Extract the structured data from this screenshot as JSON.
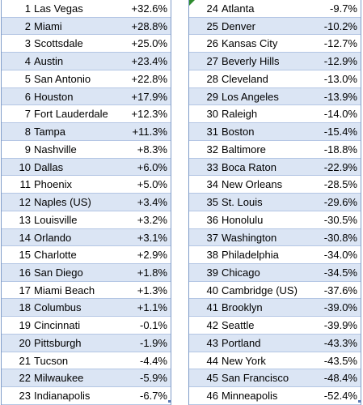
{
  "left": [
    {
      "rank": "1",
      "city": "Las Vegas",
      "change": "+32.6%"
    },
    {
      "rank": "2",
      "city": "Miami",
      "change": "+28.8%"
    },
    {
      "rank": "3",
      "city": "Scottsdale",
      "change": "+25.0%"
    },
    {
      "rank": "4",
      "city": "Austin",
      "change": "+23.4%"
    },
    {
      "rank": "5",
      "city": "San Antonio",
      "change": "+22.8%"
    },
    {
      "rank": "6",
      "city": "Houston",
      "change": "+17.9%"
    },
    {
      "rank": "7",
      "city": "Fort Lauderdale",
      "change": "+12.3%"
    },
    {
      "rank": "8",
      "city": "Tampa",
      "change": "+11.3%"
    },
    {
      "rank": "9",
      "city": "Nashville",
      "change": "+8.3%"
    },
    {
      "rank": "10",
      "city": "Dallas",
      "change": "+6.0%"
    },
    {
      "rank": "11",
      "city": "Phoenix",
      "change": "+5.0%"
    },
    {
      "rank": "12",
      "city": "Naples (US)",
      "change": "+3.4%"
    },
    {
      "rank": "13",
      "city": "Louisville",
      "change": "+3.2%"
    },
    {
      "rank": "14",
      "city": "Orlando",
      "change": "+3.1%"
    },
    {
      "rank": "15",
      "city": "Charlotte",
      "change": "+2.9%"
    },
    {
      "rank": "16",
      "city": "San Diego",
      "change": "+1.8%"
    },
    {
      "rank": "17",
      "city": "Miami Beach",
      "change": "+1.3%"
    },
    {
      "rank": "18",
      "city": "Columbus",
      "change": "+1.1%"
    },
    {
      "rank": "19",
      "city": "Cincinnati",
      "change": "-0.1%"
    },
    {
      "rank": "20",
      "city": "Pittsburgh",
      "change": "-1.9%"
    },
    {
      "rank": "21",
      "city": "Tucson",
      "change": "-4.4%"
    },
    {
      "rank": "22",
      "city": "Milwaukee",
      "change": "-5.9%"
    },
    {
      "rank": "23",
      "city": "Indianapolis",
      "change": "-6.7%"
    }
  ],
  "right": [
    {
      "rank": "24",
      "city": "Atlanta",
      "change": "-9.7%"
    },
    {
      "rank": "25",
      "city": "Denver",
      "change": "-10.2%"
    },
    {
      "rank": "26",
      "city": "Kansas City",
      "change": "-12.7%"
    },
    {
      "rank": "27",
      "city": "Beverly Hills",
      "change": "-12.9%"
    },
    {
      "rank": "28",
      "city": "Cleveland",
      "change": "-13.0%"
    },
    {
      "rank": "29",
      "city": "Los Angeles",
      "change": "-13.9%"
    },
    {
      "rank": "30",
      "city": "Raleigh",
      "change": "-14.0%"
    },
    {
      "rank": "31",
      "city": "Boston",
      "change": "-15.4%"
    },
    {
      "rank": "32",
      "city": "Baltimore",
      "change": "-18.8%"
    },
    {
      "rank": "33",
      "city": "Boca Raton",
      "change": "-22.9%"
    },
    {
      "rank": "34",
      "city": "New Orleans",
      "change": "-28.5%"
    },
    {
      "rank": "35",
      "city": "St. Louis",
      "change": "-29.6%"
    },
    {
      "rank": "36",
      "city": "Honolulu",
      "change": "-30.5%"
    },
    {
      "rank": "37",
      "city": "Washington",
      "change": "-30.8%"
    },
    {
      "rank": "38",
      "city": "Philadelphia",
      "change": "-34.0%"
    },
    {
      "rank": "39",
      "city": "Chicago",
      "change": "-34.5%"
    },
    {
      "rank": "40",
      "city": "Cambridge (US)",
      "change": "-37.6%"
    },
    {
      "rank": "41",
      "city": "Brooklyn",
      "change": "-39.0%"
    },
    {
      "rank": "42",
      "city": "Seattle",
      "change": "-39.9%"
    },
    {
      "rank": "43",
      "city": "Portland",
      "change": "-43.3%"
    },
    {
      "rank": "44",
      "city": "New York",
      "change": "-43.5%"
    },
    {
      "rank": "45",
      "city": "San Francisco",
      "change": "-48.4%"
    },
    {
      "rank": "46",
      "city": "Minneapolis",
      "change": "-52.4%"
    }
  ],
  "colors": {
    "band": "#dbe5f4",
    "border": "#7f9cc8",
    "corner_mark": "#2e8b2e"
  }
}
